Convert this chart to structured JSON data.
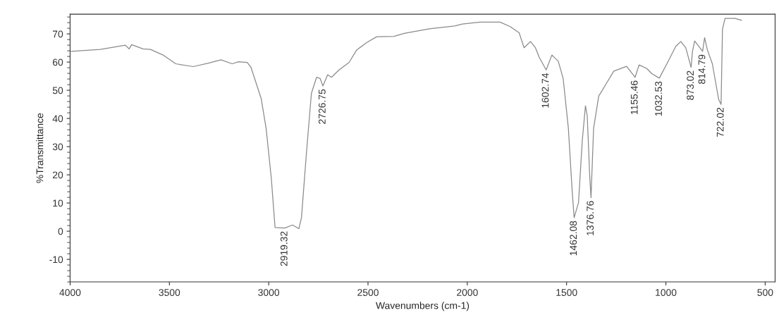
{
  "chart_data": {
    "type": "line",
    "xlabel": "Wavenumbers (cm-1)",
    "ylabel": "%Transmittance",
    "xlim": [
      4000,
      450
    ],
    "ylim": [
      -18,
      77
    ],
    "xticks": [
      4000,
      3500,
      3000,
      2500,
      2000,
      1500,
      1000,
      500
    ],
    "yticks": [
      -10,
      0,
      10,
      20,
      30,
      40,
      50,
      60,
      70
    ],
    "grid": false,
    "legend": false,
    "marker": "none",
    "line_style": "solid",
    "series": [
      {
        "color": "#8a8a8a",
        "x": [
          3995,
          3848,
          3722,
          3703,
          3690,
          3633,
          3595,
          3532,
          3468,
          3380,
          3304,
          3240,
          3184,
          3152,
          3108,
          3089,
          3038,
          3013,
          2987,
          2968,
          2919,
          2880,
          2848,
          2835,
          2810,
          2785,
          2759,
          2741,
          2727,
          2703,
          2684,
          2646,
          2595,
          2557,
          2507,
          2456,
          2369,
          2318,
          2191,
          2064,
          2025,
          1936,
          1835,
          1784,
          1739,
          1714,
          1682,
          1657,
          1637,
          1603,
          1574,
          1542,
          1517,
          1491,
          1472,
          1462,
          1440,
          1421,
          1405,
          1396,
          1383,
          1377,
          1364,
          1338,
          1326,
          1300,
          1262,
          1198,
          1155,
          1135,
          1096,
          1071,
          1033,
          995,
          950,
          925,
          900,
          873,
          866,
          855,
          815,
          805,
          791,
          766,
          734,
          722,
          715,
          702,
          651,
          619
        ],
        "values": [
          63.8,
          64.5,
          66,
          64.7,
          66.2,
          64.7,
          64.5,
          62.5,
          59.4,
          58.4,
          59.6,
          60.8,
          59.4,
          60.1,
          59.9,
          58.1,
          47.1,
          36.5,
          18.9,
          1.3,
          1.1,
          2.2,
          0.9,
          4.8,
          27.7,
          48.9,
          54.6,
          54.2,
          51.5,
          55.5,
          54.6,
          57.2,
          59.9,
          64.3,
          66.9,
          69,
          69.1,
          70.2,
          71.8,
          72.8,
          73.5,
          74.2,
          74.2,
          72.6,
          70.4,
          65.1,
          67.3,
          65.1,
          61.6,
          57.2,
          62.5,
          60.3,
          54.1,
          36.5,
          14.5,
          4.8,
          10.1,
          32.1,
          44.5,
          40.9,
          18.9,
          11.9,
          36.5,
          48,
          49.3,
          52.4,
          56.8,
          58.5,
          54.6,
          59,
          57.7,
          55.9,
          54.3,
          59.4,
          65.6,
          67.3,
          65.1,
          58.1,
          63.8,
          67.5,
          63.8,
          68.7,
          64.3,
          59.4,
          46.7,
          45,
          71.7,
          75.5,
          75.5,
          74.8
        ]
      }
    ],
    "annotations": [
      {
        "text": "2919.32",
        "x": 2919,
        "y": 1.1
      },
      {
        "text": "2726.75",
        "x": 2727,
        "y": 51.5
      },
      {
        "text": "1602.74",
        "x": 1603,
        "y": 57.2
      },
      {
        "text": "1462.08",
        "x": 1462,
        "y": 4.8
      },
      {
        "text": "1376.76",
        "x": 1377,
        "y": 11.9
      },
      {
        "text": "1155.46",
        "x": 1155,
        "y": 54.6
      },
      {
        "text": "1032.53",
        "x": 1033,
        "y": 54.3
      },
      {
        "text": "873.02",
        "x": 873,
        "y": 58.1
      },
      {
        "text": "814.79",
        "x": 815,
        "y": 63.8
      },
      {
        "text": "722.02",
        "x": 722,
        "y": 45
      }
    ]
  }
}
